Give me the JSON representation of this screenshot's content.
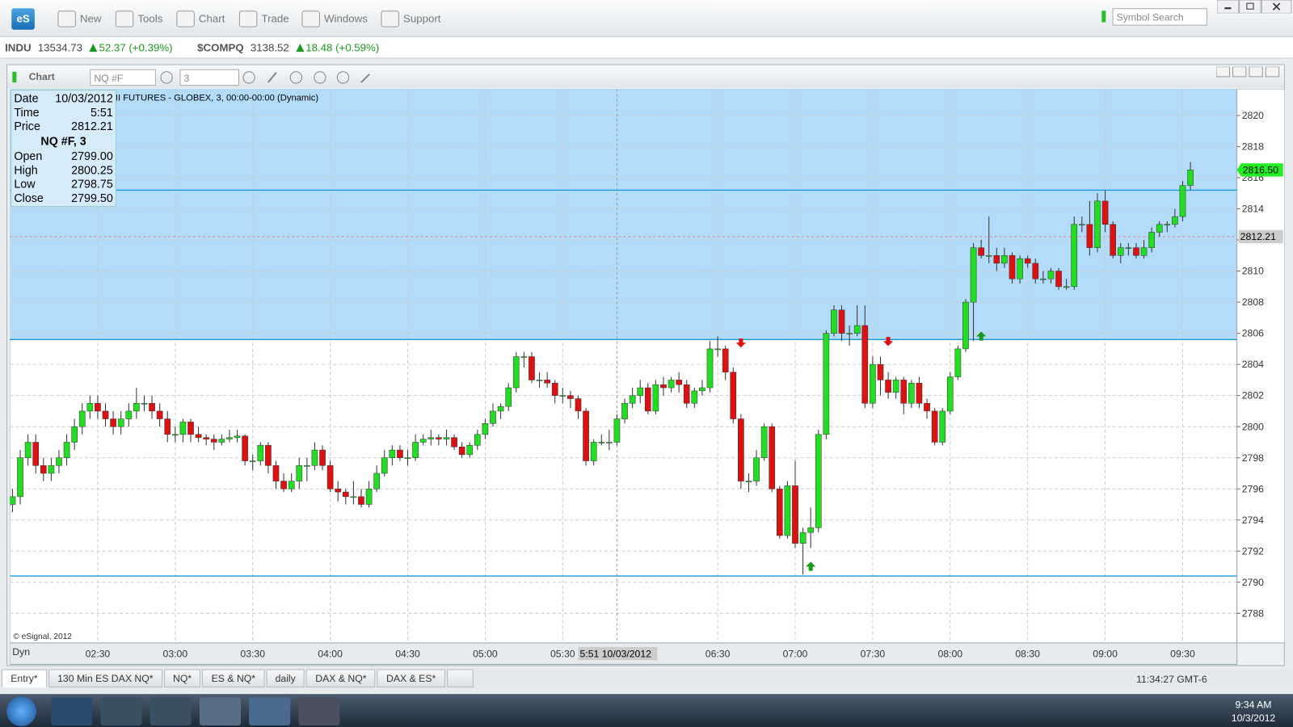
{
  "toolbar": {
    "logo": "eS",
    "buttons": [
      "New",
      "Tools",
      "Chart",
      "Trade",
      "Windows",
      "Support"
    ],
    "search": "Symbol Search"
  },
  "ticker": [
    {
      "symbol": "INDU",
      "price": "13534.73",
      "change": "52.37 (+0.39%)"
    },
    {
      "symbol": "$COMPQ",
      "price": "3138.52",
      "change": "18.48 (+0.59%)"
    }
  ],
  "window": {
    "title": "Chart",
    "symbol": "NQ #F",
    "interval": "3",
    "dyn": "Dyn"
  },
  "info": {
    "rows": [
      [
        "Date",
        "10/03/2012"
      ],
      [
        "Time",
        "5:51"
      ],
      [
        "Price",
        "2812.21"
      ]
    ],
    "heading": "NQ #F, 3",
    "ohlc": [
      [
        "Open",
        "2799.00"
      ],
      [
        "High",
        "2800.25"
      ],
      [
        "Low",
        "2798.75"
      ],
      [
        "Close",
        "2799.50"
      ]
    ]
  },
  "tabs": [
    "Entry*",
    "130 Min ES DAX NQ*",
    "NQ*",
    "ES & NQ*",
    "daily",
    "DAX & NQ*",
    "DAX & ES*"
  ],
  "server_time": "11:34:27 GMT-6",
  "taskbar": {
    "time": "9:34 AM",
    "date": "10/3/2012"
  },
  "chart_data": {
    "type": "candlestick",
    "title": "II FUTURES - GLOBEX, 3, 00:00-00:00 (Dynamic)",
    "copyright": "© eSignal, 2012",
    "up_color": "#22dd22",
    "down_color": "#dd1111",
    "grid": true,
    "xlim": [
      116,
      591
    ],
    "ylim": [
      2786.1,
      2821.7
    ],
    "yticks": [
      2788,
      2790,
      2792,
      2794,
      2796,
      2798,
      2800,
      2802,
      2804,
      2806,
      2808,
      2810,
      2812,
      2814,
      2816,
      2818,
      2820
    ],
    "xticks": [
      {
        "value": 150,
        "label": "02:30"
      },
      {
        "value": 180,
        "label": "03:00"
      },
      {
        "value": 210,
        "label": "03:30"
      },
      {
        "value": 240,
        "label": "04:00"
      },
      {
        "value": 270,
        "label": "04:30"
      },
      {
        "value": 300,
        "label": "05:00"
      },
      {
        "value": 330,
        "label": "05:30"
      },
      {
        "value": 390,
        "label": "06:30"
      },
      {
        "value": 420,
        "label": "07:00"
      },
      {
        "value": 450,
        "label": "07:30"
      },
      {
        "value": 480,
        "label": "08:00"
      },
      {
        "value": 510,
        "label": "08:30"
      },
      {
        "value": 540,
        "label": "09:00"
      },
      {
        "value": 570,
        "label": "09:30"
      }
    ],
    "zone": {
      "low": 2805.6,
      "color": "#b3dcfa"
    },
    "levels": {
      "values": [
        2815.2,
        2805.6,
        2790.4
      ],
      "color": "#1a9ad6"
    },
    "crosshair": {
      "x": 351,
      "price": 2812.21,
      "x_label": "5:51 10/03/2012"
    },
    "last": {
      "value": 2816.5,
      "label": "2816.50"
    },
    "signals": [
      {
        "x": 399,
        "price": 2805.4,
        "dir": "down",
        "color": "#dd1111"
      },
      {
        "x": 426,
        "price": 2791.0,
        "dir": "up",
        "color": "#1a9a1a"
      },
      {
        "x": 456,
        "price": 2805.5,
        "dir": "down",
        "color": "#dd1111"
      },
      {
        "x": 492,
        "price": 2805.8,
        "dir": "up",
        "color": "#1a9a1a"
      }
    ],
    "x": [
      117,
      120,
      123,
      126,
      129,
      132,
      135,
      138,
      141,
      144,
      147,
      150,
      153,
      156,
      159,
      162,
      165,
      168,
      171,
      174,
      177,
      180,
      183,
      186,
      189,
      192,
      195,
      198,
      201,
      204,
      207,
      210,
      213,
      216,
      219,
      222,
      225,
      228,
      231,
      234,
      237,
      240,
      243,
      246,
      249,
      252,
      255,
      258,
      261,
      264,
      267,
      270,
      273,
      276,
      279,
      282,
      285,
      288,
      291,
      294,
      297,
      300,
      303,
      306,
      309,
      312,
      315,
      318,
      321,
      324,
      327,
      330,
      333,
      336,
      339,
      342,
      345,
      348,
      351,
      354,
      357,
      360,
      363,
      366,
      369,
      372,
      375,
      378,
      381,
      384,
      387,
      390,
      393,
      396,
      399,
      402,
      405,
      408,
      411,
      414,
      417,
      420,
      423,
      426,
      429,
      432,
      435,
      438,
      441,
      444,
      447,
      450,
      453,
      456,
      459,
      462,
      465,
      468,
      471,
      474,
      477,
      480,
      483,
      486,
      489,
      492,
      495,
      498,
      501,
      504,
      507,
      510,
      513,
      516,
      519,
      522,
      525,
      528,
      531,
      534,
      537,
      540,
      543,
      546,
      549,
      552,
      555,
      558,
      561,
      564,
      567,
      570,
      573
    ],
    "ohlc": [
      [
        2795,
        2796,
        2794.5,
        2795.5
      ],
      [
        2795.5,
        2798.5,
        2795,
        2798
      ],
      [
        2798,
        2799.5,
        2797.5,
        2799
      ],
      [
        2799,
        2799.5,
        2797,
        2797.5
      ],
      [
        2797.5,
        2798,
        2796.5,
        2797
      ],
      [
        2797,
        2798,
        2796.5,
        2797.5
      ],
      [
        2797.5,
        2798.5,
        2797,
        2798
      ],
      [
        2798,
        2799.5,
        2797.5,
        2799
      ],
      [
        2799,
        2800.5,
        2798.5,
        2800
      ],
      [
        2800,
        2801.5,
        2799.5,
        2801
      ],
      [
        2801,
        2802,
        2800.5,
        2801.5
      ],
      [
        2801.5,
        2802,
        2800.5,
        2801
      ],
      [
        2801,
        2801.5,
        2800,
        2800.5
      ],
      [
        2800.5,
        2801,
        2799.5,
        2800
      ],
      [
        2800,
        2801,
        2799.5,
        2800.5
      ],
      [
        2800.5,
        2801.5,
        2800,
        2801
      ],
      [
        2801,
        2802.5,
        2800.5,
        2801.5
      ],
      [
        2801.5,
        2802,
        2801,
        2801.5
      ],
      [
        2801.5,
        2802,
        2800.5,
        2801
      ],
      [
        2801,
        2801.5,
        2800,
        2800.5
      ],
      [
        2800.5,
        2801,
        2799,
        2799.5
      ],
      [
        2799.5,
        2800,
        2799,
        2799.5
      ],
      [
        2799.5,
        2800.5,
        2799,
        2800.3
      ],
      [
        2800.3,
        2800.5,
        2799,
        2799.5
      ],
      [
        2799.5,
        2800,
        2799,
        2799.3
      ],
      [
        2799.3,
        2799.5,
        2798.8,
        2799.2
      ],
      [
        2799.2,
        2799.5,
        2798.5,
        2799
      ],
      [
        2799,
        2799.5,
        2798.8,
        2799.2
      ],
      [
        2799.2,
        2799.8,
        2799,
        2799.3
      ],
      [
        2799.3,
        2799.8,
        2799,
        2799.4
      ],
      [
        2799.4,
        2799.5,
        2797.5,
        2797.8
      ],
      [
        2797.8,
        2798.2,
        2797.2,
        2797.8
      ],
      [
        2797.8,
        2799,
        2797.5,
        2798.8
      ],
      [
        2798.8,
        2799,
        2797,
        2797.5
      ],
      [
        2797.5,
        2797.8,
        2796,
        2796.5
      ],
      [
        2796.5,
        2797,
        2795.8,
        2796
      ],
      [
        2796,
        2797,
        2795.8,
        2796.5
      ],
      [
        2796.5,
        2798,
        2796,
        2797.5
      ],
      [
        2797.5,
        2798,
        2796.5,
        2797.5
      ],
      [
        2797.5,
        2799,
        2797.2,
        2798.5
      ],
      [
        2798.5,
        2798.8,
        2797.2,
        2797.5
      ],
      [
        2797.5,
        2797.8,
        2795.8,
        2796
      ],
      [
        2796,
        2796.5,
        2795.2,
        2795.8
      ],
      [
        2795.8,
        2796,
        2795,
        2795.5
      ],
      [
        2795.5,
        2796.5,
        2795,
        2795.5
      ],
      [
        2795.5,
        2796,
        2794.8,
        2795
      ],
      [
        2795,
        2796.5,
        2794.8,
        2796
      ],
      [
        2796,
        2797.5,
        2795.8,
        2797
      ],
      [
        2797,
        2798.5,
        2796.8,
        2798
      ],
      [
        2798,
        2798.8,
        2797.5,
        2798.5
      ],
      [
        2798.5,
        2798.8,
        2797.8,
        2798
      ],
      [
        2798,
        2798.5,
        2797.5,
        2798
      ],
      [
        2798,
        2799.5,
        2797.8,
        2799
      ],
      [
        2799,
        2799.5,
        2798.8,
        2799.2
      ],
      [
        2799.2,
        2799.8,
        2798.8,
        2799.3
      ],
      [
        2799.3,
        2799.5,
        2798.8,
        2799.2
      ],
      [
        2799.2,
        2799.8,
        2798.8,
        2799.3
      ],
      [
        2799.3,
        2799.5,
        2798.5,
        2798.7
      ],
      [
        2798.7,
        2799,
        2798,
        2798.2
      ],
      [
        2798.2,
        2799,
        2798,
        2798.8
      ],
      [
        2798.8,
        2799.8,
        2798.5,
        2799.5
      ],
      [
        2799.5,
        2800.5,
        2799.2,
        2800.2
      ],
      [
        2800.2,
        2801.5,
        2800,
        2801
      ],
      [
        2801,
        2801.5,
        2800.5,
        2801.3
      ],
      [
        2801.3,
        2802.8,
        2801,
        2802.5
      ],
      [
        2802.5,
        2804.8,
        2802.2,
        2804.5
      ],
      [
        2804.5,
        2804.8,
        2803.8,
        2804.5
      ],
      [
        2804.5,
        2804.8,
        2802.8,
        2803
      ],
      [
        2803,
        2803.5,
        2802.5,
        2803
      ],
      [
        2803,
        2803.5,
        2802.5,
        2802.8
      ],
      [
        2802.8,
        2803,
        2801.5,
        2802
      ],
      [
        2802,
        2802.5,
        2801.5,
        2802
      ],
      [
        2802,
        2802.3,
        2801.2,
        2801.8
      ],
      [
        2801.8,
        2802,
        2800.5,
        2801
      ],
      [
        2801,
        2801.2,
        2797.5,
        2797.8
      ],
      [
        2797.8,
        2799.2,
        2797.5,
        2799
      ],
      [
        2799,
        2799.5,
        2798.8,
        2799
      ],
      [
        2799,
        2799.8,
        2798.5,
        2799
      ],
      [
        2799,
        2800.8,
        2798.8,
        2800.5
      ],
      [
        2800.5,
        2801.8,
        2800.2,
        2801.5
      ],
      [
        2801.5,
        2802.5,
        2801.2,
        2802
      ],
      [
        2802,
        2803,
        2801.5,
        2802.5
      ],
      [
        2802.5,
        2802.8,
        2800.8,
        2801
      ],
      [
        2801,
        2803,
        2800.8,
        2802.7
      ],
      [
        2802.7,
        2803.2,
        2802,
        2802.5
      ],
      [
        2802.5,
        2803.2,
        2802.2,
        2803
      ],
      [
        2803,
        2803.5,
        2802.2,
        2802.7
      ],
      [
        2802.7,
        2803,
        2801.2,
        2801.5
      ],
      [
        2801.5,
        2802.5,
        2801.2,
        2802.3
      ],
      [
        2802.3,
        2803,
        2802,
        2802.5
      ],
      [
        2802.5,
        2805.5,
        2802.2,
        2805
      ],
      [
        2805,
        2805.8,
        2804.5,
        2805
      ],
      [
        2805,
        2805.2,
        2803,
        2803.5
      ],
      [
        2803.5,
        2803.8,
        2800.2,
        2800.5
      ],
      [
        2800.5,
        2800.8,
        2796,
        2796.5
      ],
      [
        2796.5,
        2797,
        2795.8,
        2796.5
      ],
      [
        2796.5,
        2798.5,
        2796.2,
        2798
      ],
      [
        2798,
        2800.2,
        2797.8,
        2800
      ],
      [
        2800,
        2800.2,
        2795.8,
        2796
      ],
      [
        2796,
        2796.2,
        2792.8,
        2793
      ],
      [
        2793,
        2796.5,
        2792.8,
        2796.2
      ],
      [
        2796.2,
        2797.8,
        2792.2,
        2792.5
      ],
      [
        2792.5,
        2793.5,
        2790.5,
        2793.2
      ],
      [
        2793.2,
        2794.8,
        2792.2,
        2793.5
      ],
      [
        2793.5,
        2799.8,
        2793.2,
        2799.5
      ],
      [
        2799.5,
        2806.2,
        2799.2,
        2806
      ],
      [
        2806,
        2807.8,
        2805.8,
        2807.5
      ],
      [
        2807.5,
        2807.8,
        2805.5,
        2806
      ],
      [
        2806,
        2806.5,
        2805.2,
        2806
      ],
      [
        2806,
        2807.8,
        2805.8,
        2806.5
      ],
      [
        2806.5,
        2807.8,
        2801.2,
        2801.5
      ],
      [
        2801.5,
        2804.5,
        2801.2,
        2804
      ],
      [
        2804,
        2804.5,
        2802,
        2803
      ],
      [
        2803,
        2803.5,
        2801.8,
        2802.2
      ],
      [
        2802.2,
        2803.2,
        2801.8,
        2803
      ],
      [
        2803,
        2803.2,
        2800.8,
        2801.5
      ],
      [
        2801.5,
        2803,
        2801.2,
        2802.8
      ],
      [
        2802.8,
        2803.2,
        2801.2,
        2801.5
      ],
      [
        2801.5,
        2801.8,
        2800.5,
        2801
      ],
      [
        2801,
        2801.2,
        2798.8,
        2799
      ],
      [
        2799,
        2801.2,
        2798.8,
        2801
      ],
      [
        2801,
        2803.5,
        2800.8,
        2803.2
      ],
      [
        2803.2,
        2805.2,
        2803,
        2805
      ],
      [
        2805,
        2808.2,
        2804.8,
        2808
      ],
      [
        2808,
        2811.8,
        2805.5,
        2811.5
      ],
      [
        2811.5,
        2812,
        2810.8,
        2811
      ],
      [
        2811,
        2813.5,
        2810.5,
        2811
      ],
      [
        2811,
        2811.5,
        2810,
        2810.5
      ],
      [
        2810.5,
        2811.5,
        2810.2,
        2811
      ],
      [
        2811,
        2811.2,
        2809.2,
        2809.5
      ],
      [
        2809.5,
        2811,
        2809.2,
        2810.8
      ],
      [
        2810.8,
        2811,
        2810.2,
        2810.5
      ],
      [
        2810.5,
        2810.8,
        2809.2,
        2809.5
      ],
      [
        2809.5,
        2810,
        2809.2,
        2809.5
      ],
      [
        2809.5,
        2810.2,
        2809.2,
        2810
      ],
      [
        2810,
        2810.2,
        2808.8,
        2809
      ],
      [
        2809,
        2809.5,
        2808.8,
        2809
      ],
      [
        2809,
        2813.5,
        2808.8,
        2813
      ],
      [
        2813,
        2813.5,
        2812.5,
        2813
      ],
      [
        2813,
        2814.5,
        2811,
        2811.5
      ],
      [
        2811.5,
        2815,
        2811.2,
        2814.5
      ],
      [
        2814.5,
        2815.2,
        2812.5,
        2813
      ],
      [
        2813,
        2813.2,
        2810.8,
        2811
      ],
      [
        2811,
        2811.8,
        2810.5,
        2811.5
      ],
      [
        2811.5,
        2811.8,
        2811,
        2811.5
      ],
      [
        2811.5,
        2811.8,
        2810.8,
        2811
      ],
      [
        2811,
        2812,
        2810.8,
        2811.5
      ],
      [
        2811.5,
        2812.8,
        2811.2,
        2812.5
      ],
      [
        2812.5,
        2813.2,
        2812.2,
        2813
      ],
      [
        2813,
        2813.2,
        2812.5,
        2813
      ],
      [
        2813,
        2814,
        2812.8,
        2813.5
      ],
      [
        2813.5,
        2815.8,
        2813.2,
        2815.5
      ],
      [
        2815.5,
        2817,
        2815.2,
        2816.5
      ]
    ]
  }
}
